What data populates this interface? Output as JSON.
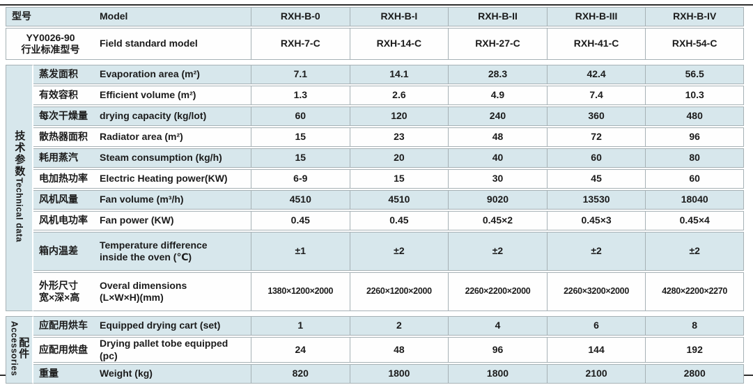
{
  "colors": {
    "row_blue": "#d7e7ec",
    "grid": "#a6b1b5",
    "rule": "#2e2e2e",
    "text": "#1b1b1b"
  },
  "header": {
    "cn": "型号",
    "en": "Model",
    "models": [
      "RXH-B-0",
      "RXH-B-I",
      "RXH-B-II",
      "RXH-B-III",
      "RXH-B-IV"
    ]
  },
  "standard": {
    "cn_line1": "YY0026-90",
    "cn_line2": "行业标准型号",
    "en": "Field standard model",
    "values": [
      "RXH-7-C",
      "RXH-14-C",
      "RXH-27-C",
      "RXH-41-C",
      "RXH-54-C"
    ]
  },
  "groups": [
    {
      "label_cn": "技术参数",
      "label_en": "Technical data",
      "rows": [
        {
          "cn": "蒸发面积",
          "en": "Evaporation area (m²)",
          "values": [
            "7.1",
            "14.1",
            "28.3",
            "42.4",
            "56.5"
          ]
        },
        {
          "cn": "有效容积",
          "en": "Efficient volume (m²)",
          "values": [
            "1.3",
            "2.6",
            "4.9",
            "7.4",
            "10.3"
          ]
        },
        {
          "cn": "每次干燥量",
          "en": "drying capacity (kg/lot)",
          "values": [
            "60",
            "120",
            "240",
            "360",
            "480"
          ]
        },
        {
          "cn": "散热器面积",
          "en": "Radiator area (m²)",
          "values": [
            "15",
            "23",
            "48",
            "72",
            "96"
          ]
        },
        {
          "cn": "耗用蒸汽",
          "en": "Steam consumption (kg/h)",
          "values": [
            "15",
            "20",
            "40",
            "60",
            "80"
          ]
        },
        {
          "cn": "电加热功率",
          "en": "Electric Heating power(KW)",
          "values": [
            "6-9",
            "15",
            "30",
            "45",
            "60"
          ]
        },
        {
          "cn": "风机风量",
          "en": "Fan volume (m³/h)",
          "values": [
            "4510",
            "4510",
            "9020",
            "13530",
            "18040"
          ]
        },
        {
          "cn": "风机电功率",
          "en": "Fan power (KW)",
          "values": [
            "0.45",
            "0.45",
            "0.45×2",
            "0.45×3",
            "0.45×4"
          ]
        },
        {
          "cn": "箱内温差",
          "en": "Temperature difference",
          "en2": "inside the oven (℃)",
          "tall": true,
          "values": [
            "±1",
            "±2",
            "±2",
            "±2",
            "±2"
          ]
        },
        {
          "cn": "外形尺寸",
          "cn2": "宽×深×高",
          "en": "Overal dimensions",
          "en2": "(L×W×H)(mm)",
          "tall": true,
          "small_values": true,
          "values": [
            "1380×1200×2000",
            "2260×1200×2000",
            "2260×2200×2000",
            "2260×3200×2000",
            "4280×2200×2270"
          ]
        }
      ]
    },
    {
      "label_cn": "配件",
      "label_en": "Accessories",
      "rows": [
        {
          "cn": "应配用烘车",
          "en": "Equipped drying cart (set)",
          "values": [
            "1",
            "2",
            "4",
            "6",
            "8"
          ]
        },
        {
          "cn": "应配用烘盘",
          "en": "Drying pallet tobe equipped (pc)",
          "values": [
            "24",
            "48",
            "96",
            "144",
            "192"
          ]
        },
        {
          "cn": "重量",
          "en": "Weight (kg)",
          "values": [
            "820",
            "1800",
            "1800",
            "2100",
            "2800"
          ]
        }
      ]
    }
  ]
}
